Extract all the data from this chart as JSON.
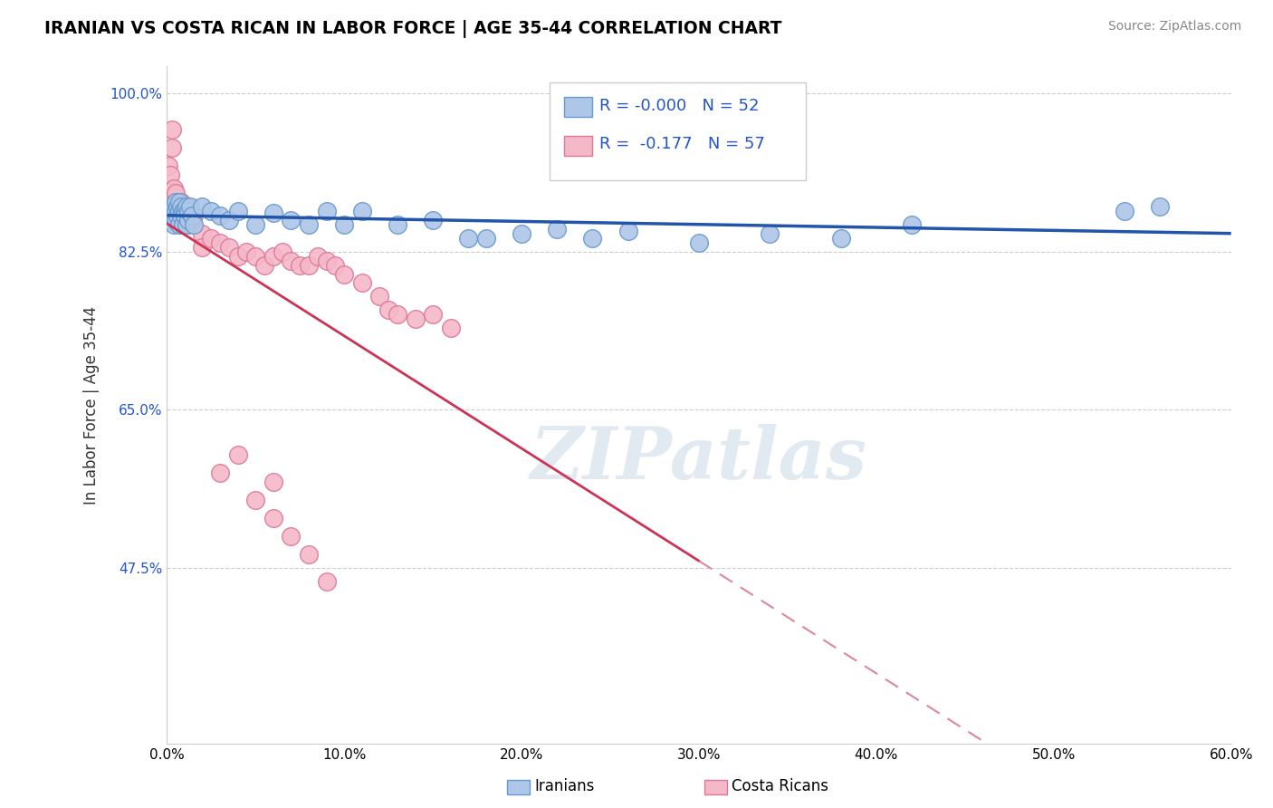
{
  "title": "IRANIAN VS COSTA RICAN IN LABOR FORCE | AGE 35-44 CORRELATION CHART",
  "source_text": "Source: ZipAtlas.com",
  "xlabel_iranian": "Iranians",
  "xlabel_costarican": "Costa Ricans",
  "ylabel": "In Labor Force | Age 35-44",
  "watermark": "ZIPatlas",
  "x_min": 0.0,
  "x_max": 0.6,
  "y_min": 0.28,
  "y_max": 1.03,
  "yticks": [
    0.475,
    0.65,
    0.825,
    1.0
  ],
  "ytick_labels": [
    "47.5%",
    "65.0%",
    "82.5%",
    "100.0%"
  ],
  "xticks": [
    0.0,
    0.1,
    0.2,
    0.3,
    0.4,
    0.5,
    0.6
  ],
  "xtick_labels": [
    "0.0%",
    "10.0%",
    "20.0%",
    "30.0%",
    "40.0%",
    "50.0%",
    "60.0%"
  ],
  "iranian_color": "#aec6e8",
  "costarican_color": "#f5b8c8",
  "iranian_edge": "#6699cc",
  "costarican_edge": "#dd7799",
  "trend_iranian_color": "#2255aa",
  "trend_costarican_solid_color": "#cc3355",
  "trend_costarican_dash_color": "#dd8899",
  "legend_R_iranian": "R = -0.000",
  "legend_N_iranian": "N = 52",
  "legend_R_costarican": "R =  -0.177",
  "legend_N_costarican": "N = 57",
  "iranian_x": [
    0.001,
    0.002,
    0.003,
    0.004,
    0.004,
    0.005,
    0.005,
    0.005,
    0.006,
    0.006,
    0.007,
    0.007,
    0.007,
    0.008,
    0.008,
    0.009,
    0.009,
    0.01,
    0.01,
    0.011,
    0.011,
    0.012,
    0.012,
    0.013,
    0.014,
    0.015,
    0.02,
    0.025,
    0.03,
    0.035,
    0.04,
    0.05,
    0.06,
    0.07,
    0.08,
    0.09,
    0.1,
    0.11,
    0.13,
    0.15,
    0.17,
    0.18,
    0.2,
    0.22,
    0.24,
    0.26,
    0.3,
    0.34,
    0.38,
    0.42,
    0.54,
    0.56
  ],
  "iranian_y": [
    0.87,
    0.86,
    0.875,
    0.865,
    0.855,
    0.87,
    0.88,
    0.86,
    0.875,
    0.865,
    0.87,
    0.88,
    0.855,
    0.875,
    0.865,
    0.87,
    0.855,
    0.87,
    0.865,
    0.875,
    0.855,
    0.86,
    0.87,
    0.875,
    0.865,
    0.855,
    0.875,
    0.87,
    0.865,
    0.86,
    0.87,
    0.855,
    0.868,
    0.86,
    0.855,
    0.87,
    0.855,
    0.87,
    0.855,
    0.86,
    0.84,
    0.84,
    0.845,
    0.85,
    0.84,
    0.848,
    0.835,
    0.845,
    0.84,
    0.855,
    0.87,
    0.875
  ],
  "costarican_x": [
    0.001,
    0.002,
    0.003,
    0.003,
    0.004,
    0.004,
    0.005,
    0.005,
    0.005,
    0.006,
    0.006,
    0.007,
    0.007,
    0.008,
    0.008,
    0.009,
    0.009,
    0.01,
    0.01,
    0.011,
    0.012,
    0.013,
    0.014,
    0.015,
    0.02,
    0.02,
    0.025,
    0.03,
    0.035,
    0.04,
    0.045,
    0.05,
    0.055,
    0.06,
    0.065,
    0.07,
    0.075,
    0.08,
    0.085,
    0.09,
    0.095,
    0.1,
    0.11,
    0.12,
    0.125,
    0.13,
    0.14,
    0.15,
    0.16,
    0.03,
    0.06,
    0.08,
    0.06,
    0.04,
    0.05,
    0.07,
    0.09
  ],
  "costarican_y": [
    0.92,
    0.91,
    0.96,
    0.94,
    0.895,
    0.88,
    0.89,
    0.87,
    0.86,
    0.88,
    0.875,
    0.87,
    0.865,
    0.88,
    0.87,
    0.86,
    0.855,
    0.865,
    0.86,
    0.87,
    0.855,
    0.865,
    0.86,
    0.865,
    0.845,
    0.83,
    0.84,
    0.835,
    0.83,
    0.82,
    0.825,
    0.82,
    0.81,
    0.82,
    0.825,
    0.815,
    0.81,
    0.81,
    0.82,
    0.815,
    0.81,
    0.8,
    0.79,
    0.775,
    0.76,
    0.755,
    0.75,
    0.755,
    0.74,
    0.58,
    0.53,
    0.49,
    0.57,
    0.6,
    0.55,
    0.51,
    0.46
  ],
  "trend_solid_x_end": 0.3,
  "trend_dash_x_start": 0.3
}
